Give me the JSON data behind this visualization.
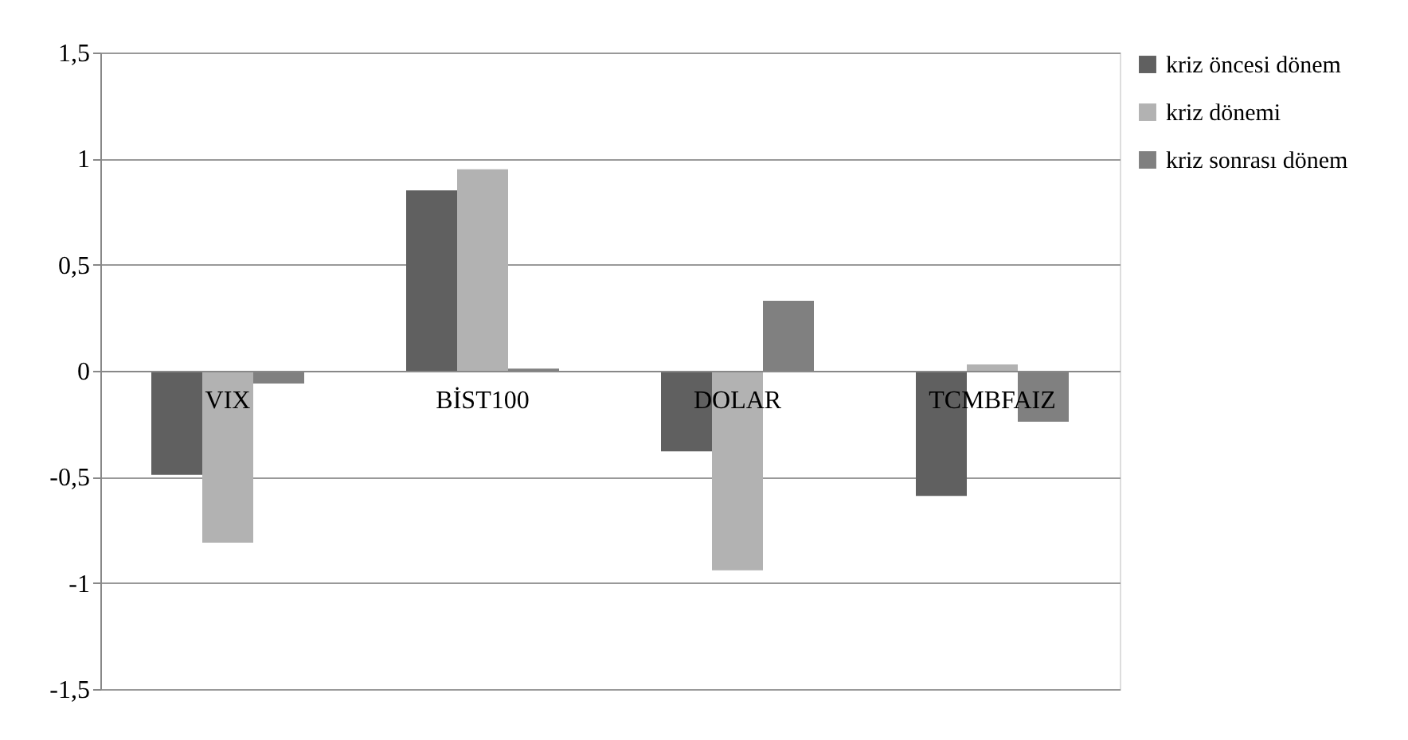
{
  "chart_data": {
    "type": "bar",
    "categories": [
      "VIX",
      "BİST100",
      "DOLAR",
      "TCMBFAIZ"
    ],
    "series": [
      {
        "name": "kriz öncesi dönem",
        "color": "#606060",
        "values": [
          -0.49,
          0.85,
          -0.38,
          -0.59
        ]
      },
      {
        "name": "kriz dönemi",
        "color": "#b2b2b2",
        "values": [
          -0.81,
          0.95,
          -0.94,
          0.03
        ]
      },
      {
        "name": "kriz sonrası dönem",
        "color": "#808080",
        "values": [
          -0.06,
          0.01,
          0.33,
          -0.24
        ]
      }
    ],
    "ylim": [
      -1.5,
      1.5
    ],
    "yticks": [
      {
        "value": -1.5,
        "label": "-1,5"
      },
      -1,
      {
        "value": -0.5,
        "label": "-0,5"
      },
      0,
      {
        "value": 0.5,
        "label": "0,5"
      },
      1,
      {
        "value": 1.5,
        "label": "1,5"
      }
    ],
    "grid": "y",
    "legend": "right"
  }
}
